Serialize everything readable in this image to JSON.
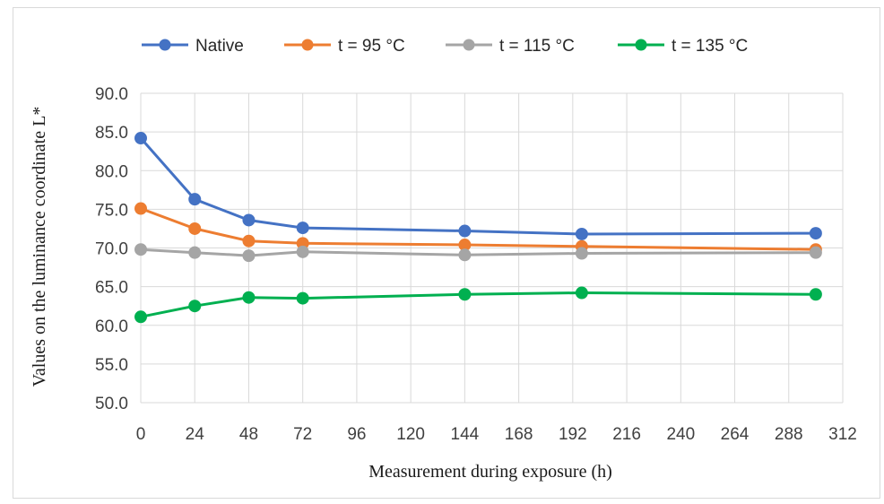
{
  "chart_data": {
    "type": "line",
    "xlabel": "Measurement during exposure (h)",
    "ylabel": "Values on the luminance coordinate L*",
    "xlim": [
      0,
      312
    ],
    "ylim": [
      50,
      90
    ],
    "x_ticks": [
      0,
      24,
      48,
      72,
      96,
      120,
      144,
      168,
      192,
      216,
      240,
      264,
      288,
      312
    ],
    "y_ticks": [
      50,
      55,
      60,
      65,
      70,
      75,
      80,
      85,
      90
    ],
    "x_tick_labels": [
      "0",
      "24",
      "48",
      "72",
      "96",
      "120",
      "144",
      "168",
      "192",
      "216",
      "240",
      "264",
      "288",
      "312"
    ],
    "y_tick_labels": [
      "50.0",
      "55.0",
      "60.0",
      "65.0",
      "70.0",
      "75.0",
      "80.0",
      "85.0",
      "90.0"
    ],
    "grid": true,
    "legend_position": "top",
    "x": [
      0,
      24,
      48,
      72,
      144,
      196,
      300
    ],
    "series": [
      {
        "name": "Native",
        "color": "#4472c4",
        "values": [
          84.2,
          76.3,
          73.6,
          72.6,
          72.2,
          71.8,
          71.9
        ]
      },
      {
        "name": "t = 95 °C",
        "color": "#ed7d31",
        "values": [
          75.1,
          72.5,
          70.9,
          70.6,
          70.4,
          70.2,
          69.8
        ]
      },
      {
        "name": "t = 115 °C",
        "color": "#a5a5a5",
        "values": [
          69.8,
          69.4,
          69.0,
          69.5,
          69.1,
          69.3,
          69.4
        ]
      },
      {
        "name": "t = 135 °C",
        "color": "#00b050",
        "values": [
          61.1,
          62.5,
          63.6,
          63.5,
          64.0,
          64.2,
          64.0
        ]
      }
    ]
  }
}
